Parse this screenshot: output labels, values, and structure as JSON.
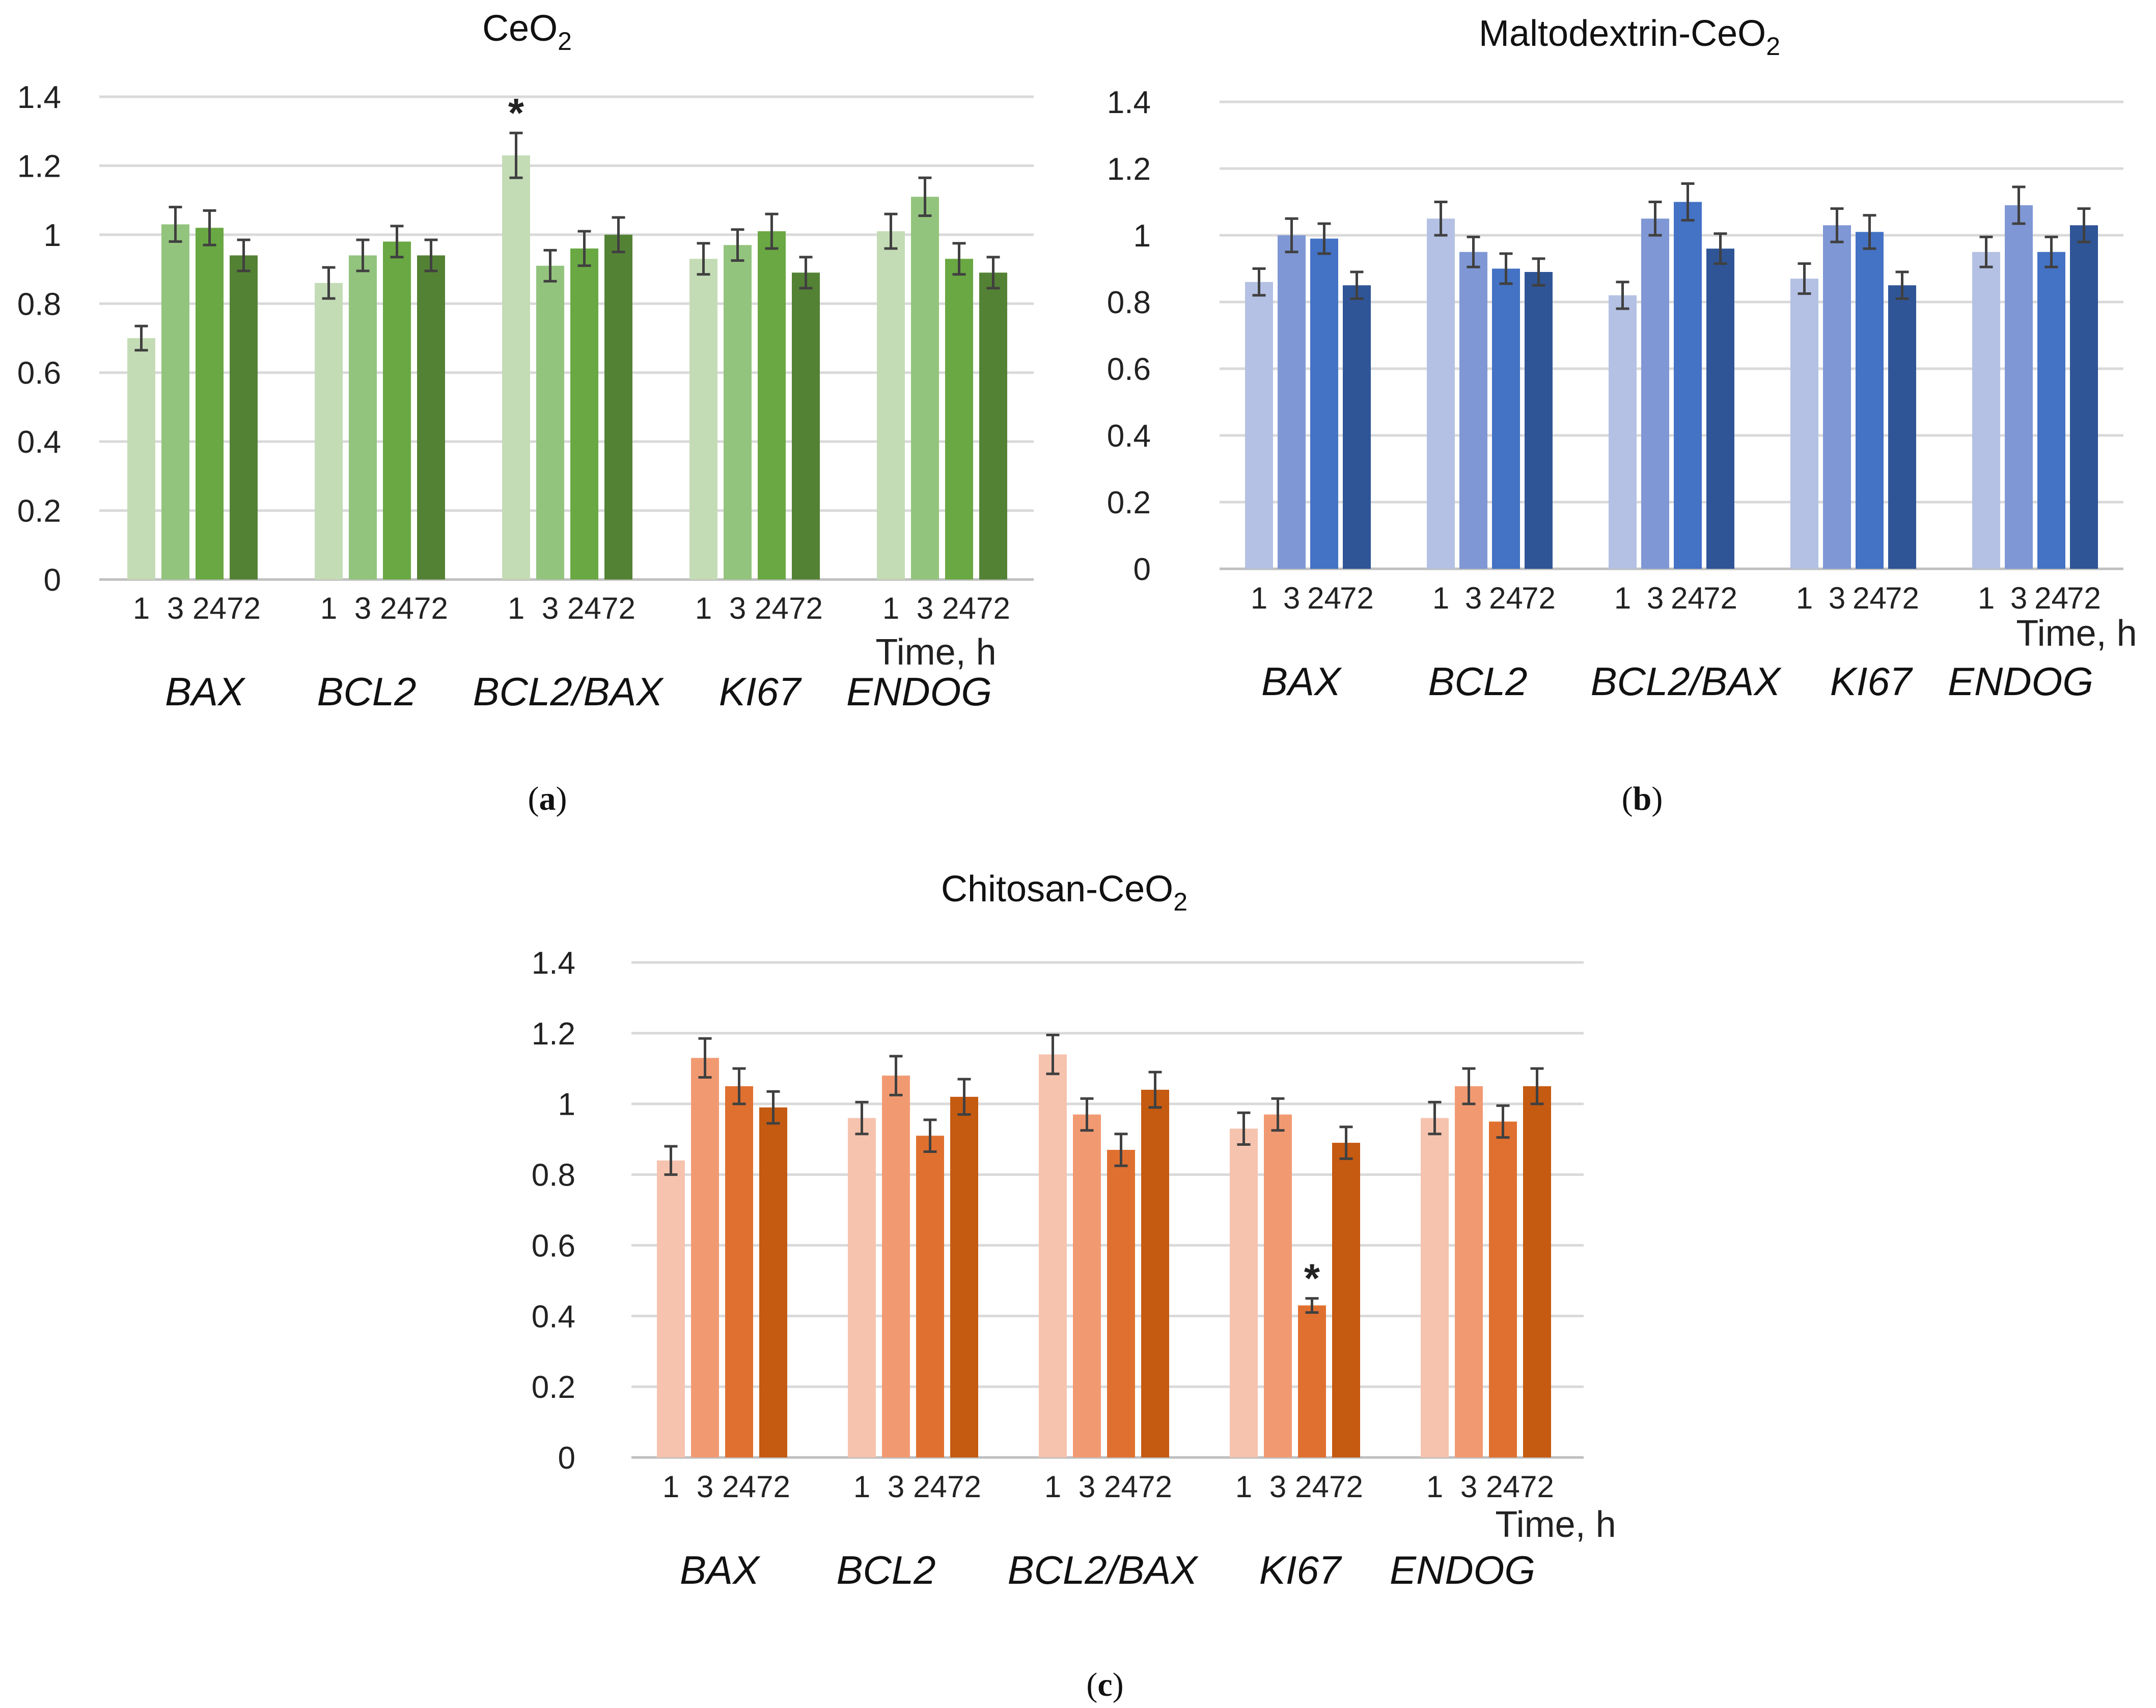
{
  "chart_data": [
    {
      "type": "bar",
      "panel_label": "(a)",
      "title": "CeO",
      "title_sub": "2",
      "xlabel": "Time, h",
      "ylabel": "",
      "ylim": [
        0,
        1.4
      ],
      "yticks": [
        "0",
        "0.2",
        "0.4",
        "0.6",
        "0.8",
        "1",
        "1.2",
        "1.4"
      ],
      "time_labels": [
        "1",
        "3",
        "24",
        "72"
      ],
      "categories": [
        "BAX",
        "BCL2",
        "BCL2/BAX",
        "KI67",
        "ENDOG"
      ],
      "colors": [
        "#c4dcb5",
        "#93c47d",
        "#6aa843",
        "#548235"
      ],
      "series": [
        {
          "name": "1",
          "values": [
            0.7,
            0.86,
            1.23,
            0.93,
            1.01
          ],
          "errors": [
            0.035,
            0.045,
            0.065,
            0.045,
            0.05
          ]
        },
        {
          "name": "3",
          "values": [
            1.03,
            0.94,
            0.91,
            0.97,
            1.11
          ],
          "errors": [
            0.05,
            0.045,
            0.045,
            0.045,
            0.055
          ]
        },
        {
          "name": "24",
          "values": [
            1.02,
            0.98,
            0.96,
            1.01,
            0.93
          ],
          "errors": [
            0.05,
            0.045,
            0.05,
            0.05,
            0.045
          ]
        },
        {
          "name": "72",
          "values": [
            0.94,
            0.94,
            1.0,
            0.89,
            0.89
          ],
          "errors": [
            0.045,
            0.045,
            0.05,
            0.045,
            0.045
          ]
        }
      ],
      "significance": [
        {
          "category": "BCL2/BAX",
          "series": "1",
          "mark": "*"
        }
      ]
    },
    {
      "type": "bar",
      "panel_label": "(b)",
      "title": "Maltodextrin-CeO",
      "title_sub": "2",
      "xlabel": "Time, h",
      "ylabel": "",
      "ylim": [
        0,
        1.4
      ],
      "yticks": [
        "0",
        "0.2",
        "0.4",
        "0.6",
        "0.8",
        "1",
        "1.2",
        "1.4"
      ],
      "time_labels": [
        "1",
        "3",
        "24",
        "72"
      ],
      "categories": [
        "BAX",
        "BCL2",
        "BCL2/BAX",
        "KI67",
        "ENDOG"
      ],
      "colors": [
        "#b4c1e4",
        "#7f97d4",
        "#4472c4",
        "#2f5597"
      ],
      "series": [
        {
          "name": "1",
          "values": [
            0.86,
            1.05,
            0.82,
            0.87,
            0.95
          ],
          "errors": [
            0.04,
            0.05,
            0.04,
            0.045,
            0.045
          ]
        },
        {
          "name": "3",
          "values": [
            1.0,
            0.95,
            1.05,
            1.03,
            1.09
          ],
          "errors": [
            0.05,
            0.045,
            0.05,
            0.05,
            0.055
          ]
        },
        {
          "name": "24",
          "values": [
            0.99,
            0.9,
            1.1,
            1.01,
            0.95
          ],
          "errors": [
            0.045,
            0.045,
            0.055,
            0.05,
            0.045
          ]
        },
        {
          "name": "72",
          "values": [
            0.85,
            0.89,
            0.96,
            0.85,
            1.03
          ],
          "errors": [
            0.04,
            0.04,
            0.045,
            0.04,
            0.05
          ]
        }
      ],
      "significance": []
    },
    {
      "type": "bar",
      "panel_label": "(c)",
      "title": "Chitosan-CeO",
      "title_sub": "2",
      "xlabel": "Time, h",
      "ylabel": "",
      "ylim": [
        0,
        1.4
      ],
      "yticks": [
        "0",
        "0.2",
        "0.4",
        "0.6",
        "0.8",
        "1",
        "1.2",
        "1.4"
      ],
      "time_labels": [
        "1",
        "3",
        "24",
        "72"
      ],
      "categories": [
        "BAX",
        "BCL2",
        "BCL2/BAX",
        "KI67",
        "ENDOG"
      ],
      "colors": [
        "#f5c3ae",
        "#f19a72",
        "#e07030",
        "#c55a11"
      ],
      "series": [
        {
          "name": "1",
          "values": [
            0.84,
            0.96,
            1.14,
            0.93,
            0.96
          ],
          "errors": [
            0.04,
            0.045,
            0.055,
            0.045,
            0.045
          ]
        },
        {
          "name": "3",
          "values": [
            1.13,
            1.08,
            0.97,
            0.97,
            1.05
          ],
          "errors": [
            0.055,
            0.055,
            0.045,
            0.045,
            0.05
          ]
        },
        {
          "name": "24",
          "values": [
            1.05,
            0.91,
            0.87,
            0.43,
            0.95
          ],
          "errors": [
            0.05,
            0.045,
            0.045,
            0.02,
            0.045
          ]
        },
        {
          "name": "72",
          "values": [
            0.99,
            1.02,
            1.04,
            0.89,
            1.05
          ],
          "errors": [
            0.045,
            0.05,
            0.05,
            0.045,
            0.05
          ]
        }
      ],
      "significance": [
        {
          "category": "KI67",
          "series": "24",
          "mark": "*"
        }
      ]
    }
  ]
}
